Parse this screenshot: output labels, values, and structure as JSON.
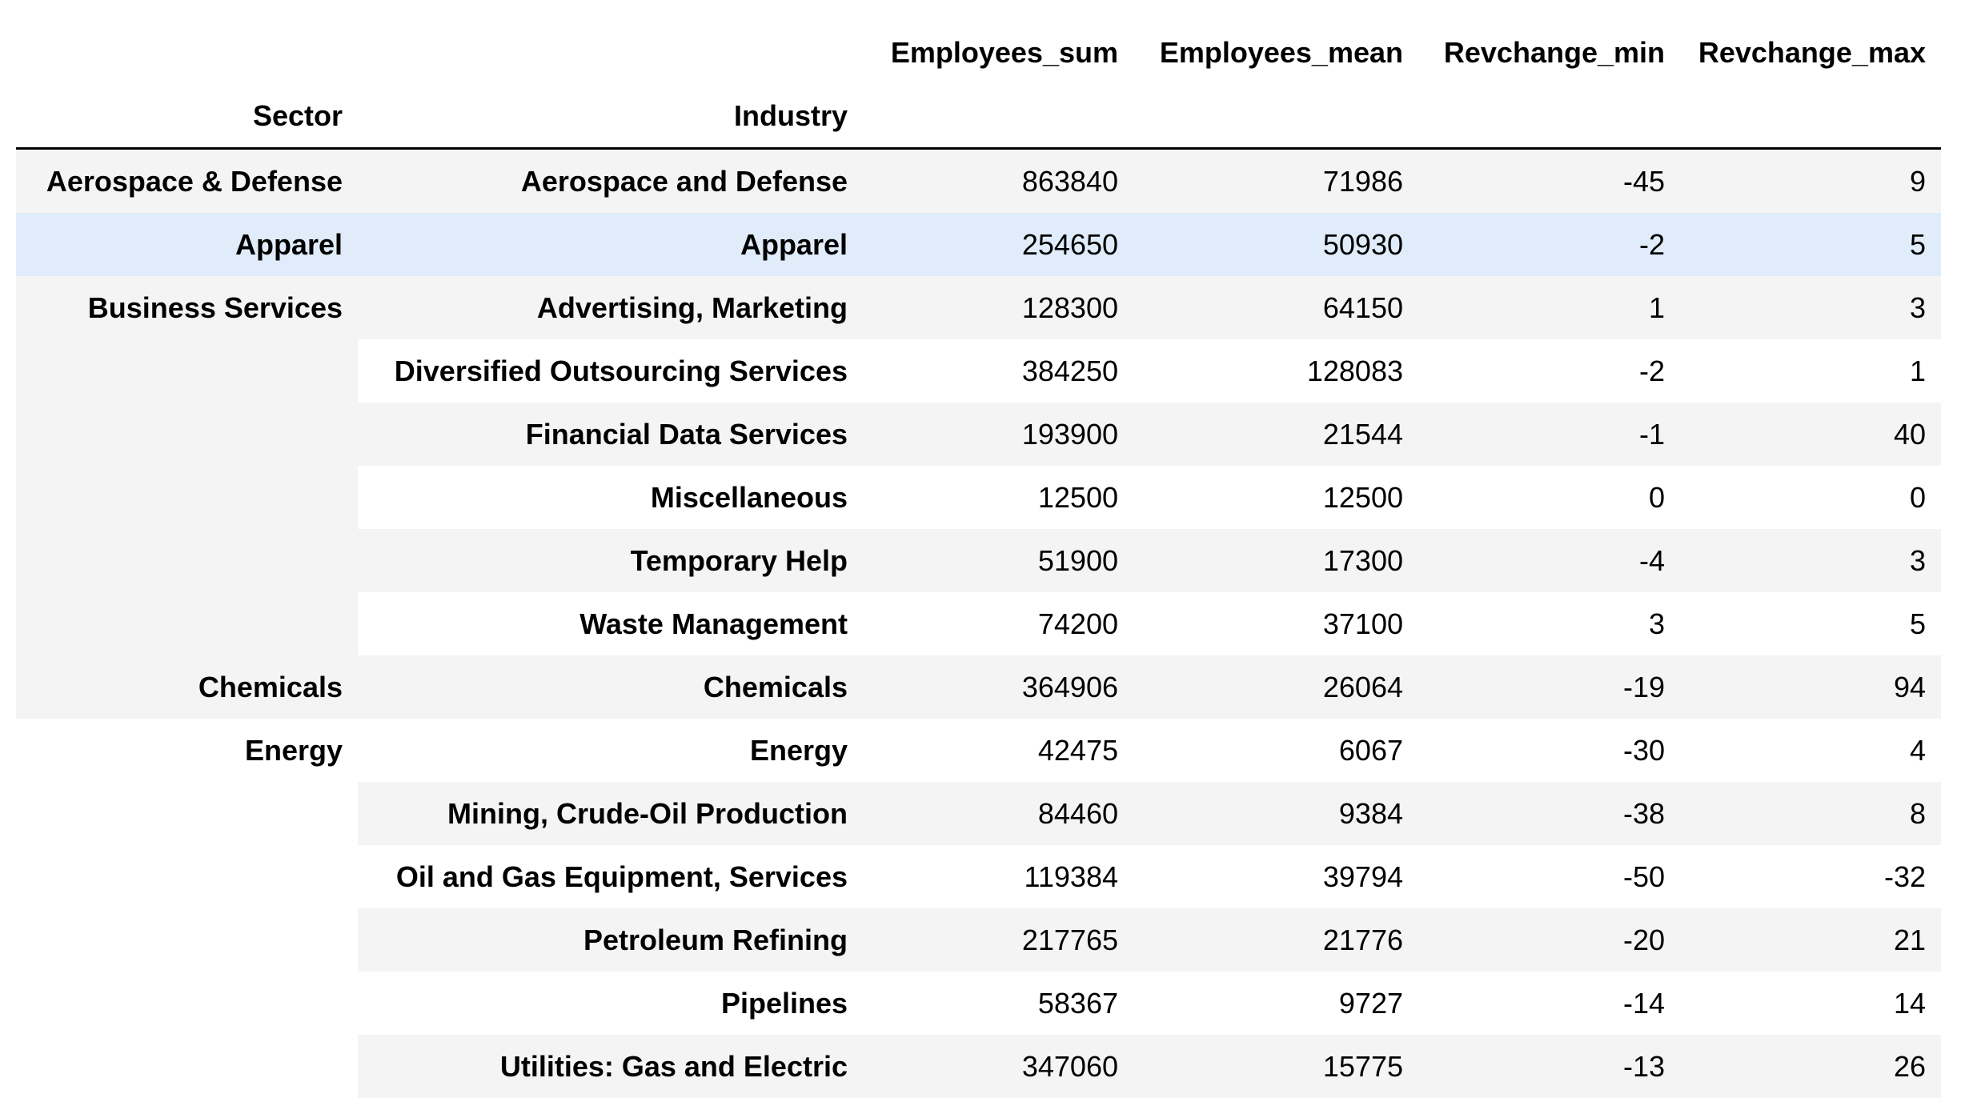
{
  "columns": {
    "employees_sum": "Employees_sum",
    "employees_mean": "Employees_mean",
    "revchange_min": "Revchange_min",
    "revchange_max": "Revchange_max"
  },
  "index_names": {
    "sector": "Sector",
    "industry": "Industry"
  },
  "groups": [
    {
      "sector": "Aerospace & Defense",
      "rows": [
        {
          "industry": "Aerospace and Defense",
          "employees_sum": "863840",
          "employees_mean": "71986",
          "revchange_min": "-45",
          "revchange_max": "9"
        }
      ]
    },
    {
      "sector": "Apparel",
      "rows": [
        {
          "industry": "Apparel",
          "employees_sum": "254650",
          "employees_mean": "50930",
          "revchange_min": "-2",
          "revchange_max": "5"
        }
      ]
    },
    {
      "sector": "Business Services",
      "rows": [
        {
          "industry": "Advertising, Marketing",
          "employees_sum": "128300",
          "employees_mean": "64150",
          "revchange_min": "1",
          "revchange_max": "3"
        },
        {
          "industry": "Diversified Outsourcing Services",
          "employees_sum": "384250",
          "employees_mean": "128083",
          "revchange_min": "-2",
          "revchange_max": "1"
        },
        {
          "industry": "Financial Data Services",
          "employees_sum": "193900",
          "employees_mean": "21544",
          "revchange_min": "-1",
          "revchange_max": "40"
        },
        {
          "industry": "Miscellaneous",
          "employees_sum": "12500",
          "employees_mean": "12500",
          "revchange_min": "0",
          "revchange_max": "0"
        },
        {
          "industry": "Temporary Help",
          "employees_sum": "51900",
          "employees_mean": "17300",
          "revchange_min": "-4",
          "revchange_max": "3"
        },
        {
          "industry": "Waste Management",
          "employees_sum": "74200",
          "employees_mean": "37100",
          "revchange_min": "3",
          "revchange_max": "5"
        }
      ]
    },
    {
      "sector": "Chemicals",
      "rows": [
        {
          "industry": "Chemicals",
          "employees_sum": "364906",
          "employees_mean": "26064",
          "revchange_min": "-19",
          "revchange_max": "94"
        }
      ]
    },
    {
      "sector": "Energy",
      "rows": [
        {
          "industry": "Energy",
          "employees_sum": "42475",
          "employees_mean": "6067",
          "revchange_min": "-30",
          "revchange_max": "4"
        },
        {
          "industry": "Mining, Crude-Oil Production",
          "employees_sum": "84460",
          "employees_mean": "9384",
          "revchange_min": "-38",
          "revchange_max": "8"
        },
        {
          "industry": "Oil and Gas Equipment, Services",
          "employees_sum": "119384",
          "employees_mean": "39794",
          "revchange_min": "-50",
          "revchange_max": "-32"
        },
        {
          "industry": "Petroleum Refining",
          "employees_sum": "217765",
          "employees_mean": "21776",
          "revchange_min": "-20",
          "revchange_max": "21"
        },
        {
          "industry": "Pipelines",
          "employees_sum": "58367",
          "employees_mean": "9727",
          "revchange_min": "-14",
          "revchange_max": "14"
        },
        {
          "industry": "Utilities: Gas and Electric",
          "employees_sum": "347060",
          "employees_mean": "15775",
          "revchange_min": "-13",
          "revchange_max": "26"
        }
      ]
    }
  ],
  "highlighted_group": 1,
  "colors": {
    "stripe": "#f4f4f4",
    "hover": "#e1ecfa",
    "header_rule": "#000000"
  }
}
